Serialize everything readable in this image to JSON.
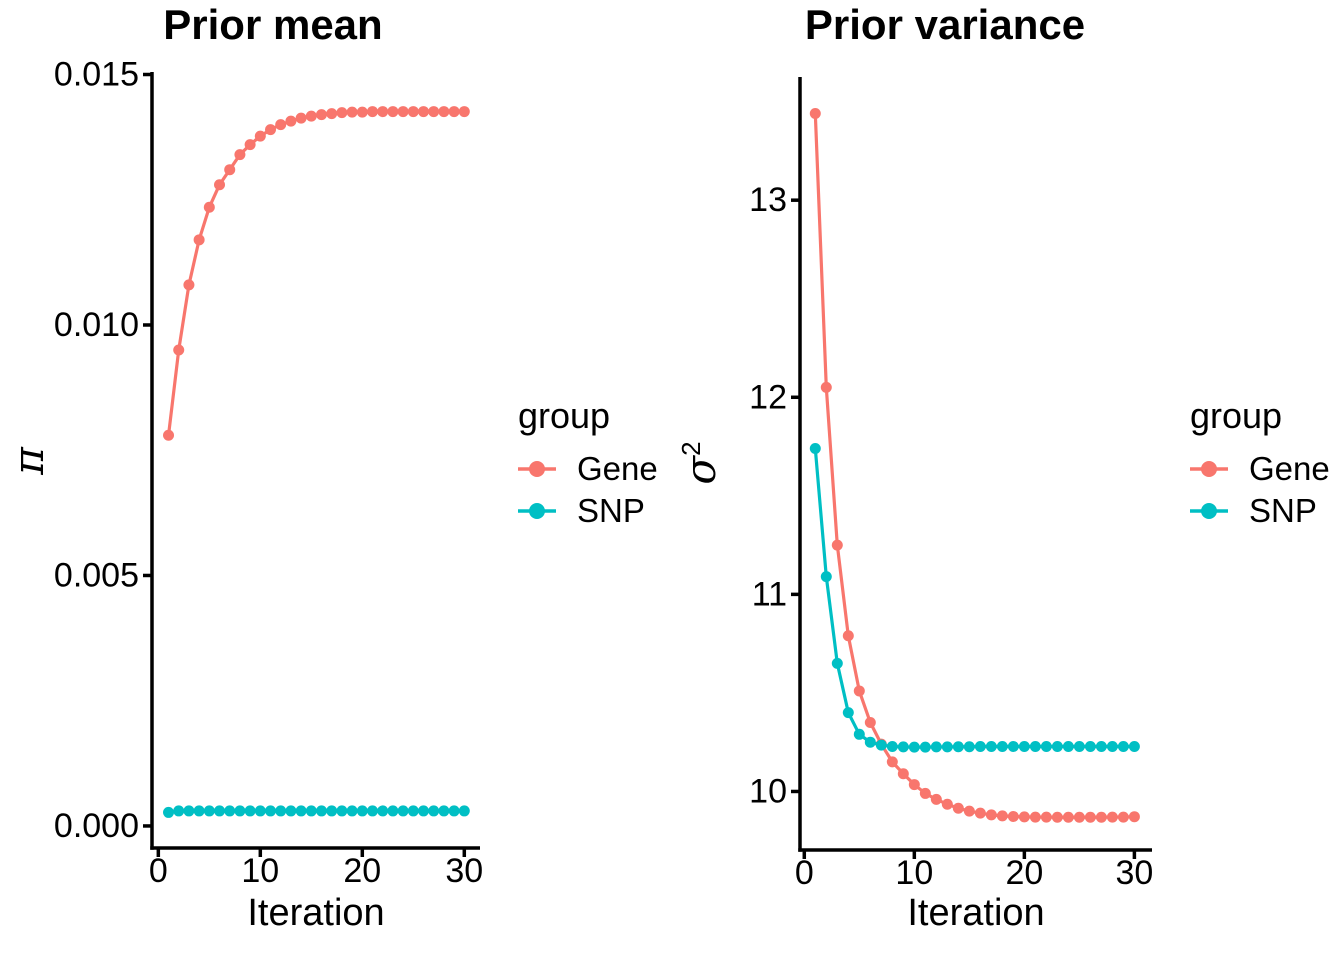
{
  "colors": {
    "gene": "#F8766D",
    "snp": "#00BFC4",
    "axis": "#000000",
    "text": "#000000",
    "background": "#FFFFFF"
  },
  "legend": {
    "title": "group",
    "entries": [
      {
        "label": "Gene",
        "color": "#F8766D"
      },
      {
        "label": "SNP",
        "color": "#00BFC4"
      }
    ]
  },
  "chart_data": [
    {
      "type": "line",
      "title": "Prior mean",
      "xlabel": "Iteration",
      "ylabel": "π",
      "ylabel_sup": "",
      "legend_position": "right",
      "grid": false,
      "xlim": [
        -0.62,
        31.54
      ],
      "ylim": [
        -0.00044,
        0.01505
      ],
      "x_ticks": [
        {
          "label": "0",
          "value": 0
        },
        {
          "label": "10",
          "value": 10
        },
        {
          "label": "20",
          "value": 20
        },
        {
          "label": "30",
          "value": 30
        }
      ],
      "y_ticks": [
        {
          "label": "0.000",
          "value": 0.0
        },
        {
          "label": "0.005",
          "value": 0.005
        },
        {
          "label": "0.010",
          "value": 0.01
        },
        {
          "label": "0.015",
          "value": 0.015
        }
      ],
      "x": [
        1,
        2,
        3,
        4,
        5,
        6,
        7,
        8,
        9,
        10,
        11,
        12,
        13,
        14,
        15,
        16,
        17,
        18,
        19,
        20,
        21,
        22,
        23,
        24,
        25,
        26,
        27,
        28,
        29,
        30
      ],
      "series": [
        {
          "name": "Gene",
          "color": "#F8766D",
          "values": [
            0.0078,
            0.0095,
            0.0108,
            0.0117,
            0.01235,
            0.0128,
            0.0131,
            0.0134,
            0.0136,
            0.01377,
            0.0139,
            0.014,
            0.01407,
            0.01413,
            0.01417,
            0.0142,
            0.01422,
            0.01424,
            0.01425,
            0.01425,
            0.01426,
            0.01426,
            0.01426,
            0.01426,
            0.01426,
            0.01426,
            0.01426,
            0.01426,
            0.01426,
            0.01426
          ]
        },
        {
          "name": "SNP",
          "color": "#00BFC4",
          "values": [
            0.00027,
            0.0003,
            0.0003,
            0.0003,
            0.0003,
            0.0003,
            0.0003,
            0.0003,
            0.0003,
            0.0003,
            0.0003,
            0.0003,
            0.0003,
            0.0003,
            0.0003,
            0.0003,
            0.0003,
            0.0003,
            0.0003,
            0.0003,
            0.0003,
            0.0003,
            0.0003,
            0.0003,
            0.0003,
            0.0003,
            0.0003,
            0.0003,
            0.0003,
            0.0003
          ]
        }
      ]
    },
    {
      "type": "line",
      "title": "Prior variance",
      "xlabel": "Iteration",
      "ylabel": "σ",
      "ylabel_sup": "2",
      "legend_position": "right",
      "grid": false,
      "xlim": [
        -0.39,
        31.6
      ],
      "ylim": [
        9.703,
        13.625
      ],
      "x_ticks": [
        {
          "label": "0",
          "value": 0
        },
        {
          "label": "10",
          "value": 10
        },
        {
          "label": "20",
          "value": 20
        },
        {
          "label": "30",
          "value": 30
        }
      ],
      "y_ticks": [
        {
          "label": "10",
          "value": 10
        },
        {
          "label": "11",
          "value": 11
        },
        {
          "label": "12",
          "value": 12
        },
        {
          "label": "13",
          "value": 13
        }
      ],
      "x": [
        1,
        2,
        3,
        4,
        5,
        6,
        7,
        8,
        9,
        10,
        11,
        12,
        13,
        14,
        15,
        16,
        17,
        18,
        19,
        20,
        21,
        22,
        23,
        24,
        25,
        26,
        27,
        28,
        29,
        30
      ],
      "series": [
        {
          "name": "Gene",
          "color": "#F8766D",
          "values": [
            13.44,
            12.05,
            11.25,
            10.79,
            10.51,
            10.35,
            10.24,
            10.15,
            10.09,
            10.035,
            9.99,
            9.96,
            9.935,
            9.915,
            9.9,
            9.89,
            9.881,
            9.876,
            9.873,
            9.871,
            9.87,
            9.87,
            9.869,
            9.869,
            9.869,
            9.869,
            9.869,
            9.87,
            9.87,
            9.872
          ]
        },
        {
          "name": "SNP",
          "color": "#00BFC4",
          "values": [
            11.74,
            11.09,
            10.65,
            10.4,
            10.29,
            10.25,
            10.235,
            10.228,
            10.226,
            10.225,
            10.225,
            10.226,
            10.226,
            10.227,
            10.227,
            10.228,
            10.228,
            10.228,
            10.228,
            10.228,
            10.228,
            10.228,
            10.228,
            10.228,
            10.228,
            10.228,
            10.228,
            10.228,
            10.228,
            10.228
          ]
        }
      ]
    }
  ]
}
